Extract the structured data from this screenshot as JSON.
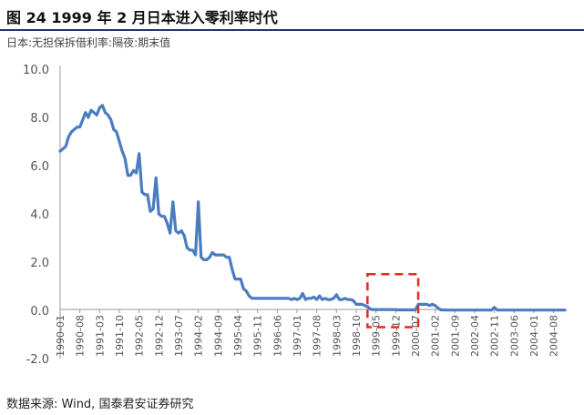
{
  "header": {
    "title": "图 24 1999 年 2 月日本进入零利率时代",
    "series_label": "日本:无担保拆借利率:隔夜:期末值"
  },
  "footer": {
    "source": "数据来源: Wind, 国泰君安证券研究"
  },
  "colors": {
    "line": "#4a7cc0",
    "highlight": "#e8291c",
    "axis": "#999999",
    "title_rule": "#1f3864"
  },
  "chart_data": {
    "type": "line",
    "title": "",
    "xlabel": "",
    "ylabel": "",
    "ylim": [
      -2.0,
      10.0
    ],
    "yticks": [
      "10.0",
      "8.0",
      "6.0",
      "4.0",
      "2.0",
      "0.0",
      "-2.0"
    ],
    "xticks": [
      "1990-01",
      "1990-08",
      "1991-03",
      "1991-10",
      "1992-05",
      "1992-12",
      "1993-07",
      "1994-02",
      "1994-09",
      "1995-04",
      "1995-11",
      "1996-06",
      "1997-01",
      "1997-08",
      "1998-03",
      "1998-10",
      "1999-05",
      "1999-12",
      "2000-07",
      "2001-02",
      "2001-09",
      "2002-04",
      "2002-11",
      "2003-06",
      "2004-01",
      "2004-08"
    ],
    "grid": false,
    "highlight_box": {
      "x_from": "1999-02",
      "x_to": "2000-08",
      "y_from": -0.7,
      "y_to": 1.5
    },
    "series": [
      {
        "name": "",
        "points": [
          [
            "1990-01",
            6.6
          ],
          [
            "1990-02",
            6.7
          ],
          [
            "1990-03",
            6.8
          ],
          [
            "1990-04",
            7.2
          ],
          [
            "1990-05",
            7.4
          ],
          [
            "1990-06",
            7.5
          ],
          [
            "1990-07",
            7.6
          ],
          [
            "1990-08",
            7.6
          ],
          [
            "1990-09",
            7.9
          ],
          [
            "1990-10",
            8.2
          ],
          [
            "1990-11",
            8.0
          ],
          [
            "1990-12",
            8.3
          ],
          [
            "1991-01",
            8.2
          ],
          [
            "1991-02",
            8.1
          ],
          [
            "1991-03",
            8.4
          ],
          [
            "1991-04",
            8.5
          ],
          [
            "1991-05",
            8.2
          ],
          [
            "1991-06",
            8.1
          ],
          [
            "1991-07",
            7.9
          ],
          [
            "1991-08",
            7.5
          ],
          [
            "1991-09",
            7.4
          ],
          [
            "1991-10",
            7.0
          ],
          [
            "1991-11",
            6.6
          ],
          [
            "1991-12",
            6.3
          ],
          [
            "1992-01",
            5.6
          ],
          [
            "1992-02",
            5.6
          ],
          [
            "1992-03",
            5.8
          ],
          [
            "1992-04",
            5.7
          ],
          [
            "1992-05",
            6.5
          ],
          [
            "1992-06",
            4.9
          ],
          [
            "1992-07",
            4.8
          ],
          [
            "1992-08",
            4.8
          ],
          [
            "1992-09",
            4.1
          ],
          [
            "1992-10",
            4.2
          ],
          [
            "1992-11",
            5.5
          ],
          [
            "1992-12",
            4.0
          ],
          [
            "1993-01",
            3.9
          ],
          [
            "1993-02",
            3.9
          ],
          [
            "1993-03",
            3.6
          ],
          [
            "1993-04",
            3.2
          ],
          [
            "1993-05",
            4.5
          ],
          [
            "1993-06",
            3.3
          ],
          [
            "1993-07",
            3.2
          ],
          [
            "1993-08",
            3.3
          ],
          [
            "1993-09",
            3.1
          ],
          [
            "1993-10",
            2.6
          ],
          [
            "1993-11",
            2.5
          ],
          [
            "1993-12",
            2.5
          ],
          [
            "1994-01",
            2.3
          ],
          [
            "1994-02",
            4.5
          ],
          [
            "1994-03",
            2.2
          ],
          [
            "1994-04",
            2.1
          ],
          [
            "1994-05",
            2.1
          ],
          [
            "1994-06",
            2.2
          ],
          [
            "1994-07",
            2.4
          ],
          [
            "1994-08",
            2.3
          ],
          [
            "1994-09",
            2.3
          ],
          [
            "1994-10",
            2.3
          ],
          [
            "1994-11",
            2.3
          ],
          [
            "1994-12",
            2.2
          ],
          [
            "1995-01",
            2.2
          ],
          [
            "1995-02",
            1.7
          ],
          [
            "1995-03",
            1.3
          ],
          [
            "1995-04",
            1.3
          ],
          [
            "1995-05",
            1.3
          ],
          [
            "1995-06",
            0.9
          ],
          [
            "1995-07",
            0.8
          ],
          [
            "1995-08",
            0.6
          ],
          [
            "1995-09",
            0.5
          ],
          [
            "1995-10",
            0.5
          ],
          [
            "1995-11",
            0.5
          ],
          [
            "1995-12",
            0.5
          ],
          [
            "1996-01",
            0.5
          ],
          [
            "1996-02",
            0.5
          ],
          [
            "1996-03",
            0.5
          ],
          [
            "1996-04",
            0.5
          ],
          [
            "1996-05",
            0.5
          ],
          [
            "1996-06",
            0.5
          ],
          [
            "1996-07",
            0.5
          ],
          [
            "1996-08",
            0.5
          ],
          [
            "1996-09",
            0.5
          ],
          [
            "1996-10",
            0.5
          ],
          [
            "1996-11",
            0.45
          ],
          [
            "1996-12",
            0.5
          ],
          [
            "1997-01",
            0.45
          ],
          [
            "1997-02",
            0.5
          ],
          [
            "1997-03",
            0.7
          ],
          [
            "1997-04",
            0.45
          ],
          [
            "1997-05",
            0.5
          ],
          [
            "1997-06",
            0.5
          ],
          [
            "1997-07",
            0.55
          ],
          [
            "1997-08",
            0.45
          ],
          [
            "1997-09",
            0.6
          ],
          [
            "1997-10",
            0.45
          ],
          [
            "1997-11",
            0.5
          ],
          [
            "1997-12",
            0.45
          ],
          [
            "1998-01",
            0.45
          ],
          [
            "1998-02",
            0.5
          ],
          [
            "1998-03",
            0.65
          ],
          [
            "1998-04",
            0.45
          ],
          [
            "1998-05",
            0.45
          ],
          [
            "1998-06",
            0.5
          ],
          [
            "1998-07",
            0.45
          ],
          [
            "1998-08",
            0.45
          ],
          [
            "1998-09",
            0.4
          ],
          [
            "1998-10",
            0.25
          ],
          [
            "1998-11",
            0.25
          ],
          [
            "1998-12",
            0.25
          ],
          [
            "1999-01",
            0.2
          ],
          [
            "1999-02",
            0.15
          ],
          [
            "1999-03",
            0.05
          ],
          [
            "1999-04",
            0.03
          ],
          [
            "1999-05",
            0.03
          ],
          [
            "1999-06",
            0.03
          ],
          [
            "1999-07",
            0.03
          ],
          [
            "1999-08",
            0.03
          ],
          [
            "1999-09",
            0.03
          ],
          [
            "1999-10",
            0.03
          ],
          [
            "1999-11",
            0.03
          ],
          [
            "1999-12",
            0.03
          ],
          [
            "2000-01",
            0.02
          ],
          [
            "2000-02",
            0.02
          ],
          [
            "2000-03",
            0.02
          ],
          [
            "2000-04",
            0.02
          ],
          [
            "2000-05",
            0.02
          ],
          [
            "2000-06",
            0.02
          ],
          [
            "2000-07",
            0.02
          ],
          [
            "2000-08",
            0.25
          ],
          [
            "2000-09",
            0.25
          ],
          [
            "2000-10",
            0.25
          ],
          [
            "2000-11",
            0.25
          ],
          [
            "2000-12",
            0.2
          ],
          [
            "2001-01",
            0.25
          ],
          [
            "2001-02",
            0.2
          ],
          [
            "2001-03",
            0.1
          ],
          [
            "2001-04",
            0.02
          ],
          [
            "2001-05",
            0.02
          ],
          [
            "2001-06",
            0.01
          ],
          [
            "2001-07",
            0.01
          ],
          [
            "2001-08",
            0.01
          ],
          [
            "2001-09",
            0.01
          ],
          [
            "2001-10",
            0.01
          ],
          [
            "2001-11",
            0.01
          ],
          [
            "2001-12",
            0.01
          ],
          [
            "2002-01",
            0.01
          ],
          [
            "2002-02",
            0.01
          ],
          [
            "2002-03",
            0.01
          ],
          [
            "2002-04",
            0.01
          ],
          [
            "2002-05",
            0.01
          ],
          [
            "2002-06",
            0.01
          ],
          [
            "2002-07",
            0.01
          ],
          [
            "2002-08",
            0.01
          ],
          [
            "2002-09",
            0.01
          ],
          [
            "2002-10",
            0.01
          ],
          [
            "2002-11",
            0.12
          ],
          [
            "2002-12",
            0.01
          ],
          [
            "2003-01",
            0.01
          ],
          [
            "2003-02",
            0.01
          ],
          [
            "2003-03",
            0.01
          ],
          [
            "2003-04",
            0.01
          ],
          [
            "2003-05",
            0.01
          ],
          [
            "2003-06",
            0.01
          ],
          [
            "2003-07",
            0.01
          ],
          [
            "2003-08",
            0.01
          ],
          [
            "2003-09",
            0.01
          ],
          [
            "2003-10",
            0.01
          ],
          [
            "2003-11",
            0.01
          ],
          [
            "2003-12",
            0.01
          ],
          [
            "2004-01",
            0.01
          ],
          [
            "2004-02",
            0.01
          ],
          [
            "2004-03",
            0.01
          ],
          [
            "2004-04",
            0.01
          ],
          [
            "2004-05",
            0.01
          ],
          [
            "2004-06",
            0.01
          ],
          [
            "2004-07",
            0.01
          ],
          [
            "2004-08",
            0.01
          ],
          [
            "2004-09",
            0.01
          ],
          [
            "2004-10",
            0.01
          ],
          [
            "2004-11",
            0.01
          ],
          [
            "2004-12",
            0.01
          ]
        ]
      }
    ]
  }
}
